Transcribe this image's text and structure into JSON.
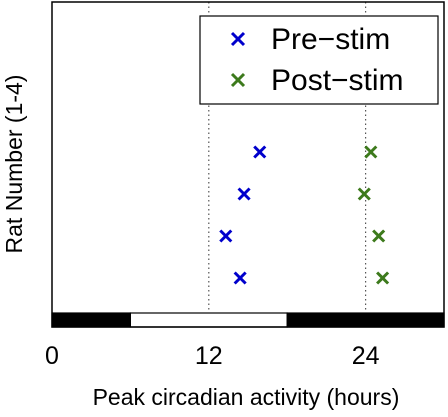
{
  "chart_data": {
    "type": "scatter",
    "title": "",
    "xlabel": "Peak circadian activity (hours)",
    "ylabel": "Rat Number (1-4)",
    "xlim": [
      0,
      30
    ],
    "ylim": [
      0,
      5
    ],
    "xticks": [
      0,
      12,
      24
    ],
    "xtick_labels": [
      "0",
      "12",
      "24"
    ],
    "grid": false,
    "vertical_reference_lines": [
      12,
      24
    ],
    "light_dark_bar": [
      {
        "from": 0,
        "to": 6,
        "phase": "dark",
        "color": "#000000"
      },
      {
        "from": 6,
        "to": 18,
        "phase": "light",
        "color": "#ffffff"
      },
      {
        "from": 18,
        "to": 30,
        "phase": "dark",
        "color": "#000000"
      }
    ],
    "legend_position": "top-right",
    "series": [
      {
        "name": "Pre−stim",
        "color": "#0000cc",
        "marker": "x",
        "points": [
          {
            "x": 14.4,
            "y": 1
          },
          {
            "x": 13.3,
            "y": 2
          },
          {
            "x": 14.7,
            "y": 3
          },
          {
            "x": 15.9,
            "y": 4
          }
        ]
      },
      {
        "name": "Post−stim",
        "color": "#3d7a1c",
        "marker": "x",
        "points": [
          {
            "x": 25.3,
            "y": 1
          },
          {
            "x": 25.0,
            "y": 2
          },
          {
            "x": 23.9,
            "y": 3
          },
          {
            "x": 24.4,
            "y": 4
          }
        ]
      }
    ]
  }
}
